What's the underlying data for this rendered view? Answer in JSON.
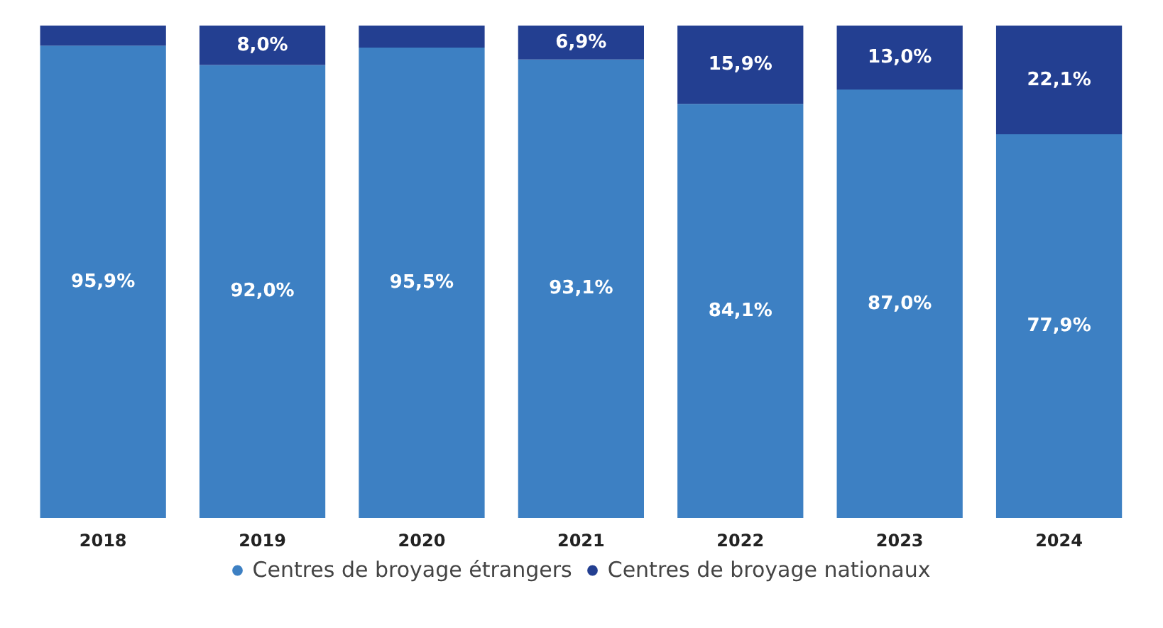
{
  "chart_data": {
    "type": "bar",
    "stacked": true,
    "categories": [
      "2018",
      "2019",
      "2020",
      "2021",
      "2022",
      "2023",
      "2024"
    ],
    "series": [
      {
        "name": "Centres de broyage étrangers",
        "color": "#3d80c3",
        "values": [
          95.9,
          92.0,
          95.5,
          93.1,
          84.1,
          87.0,
          77.9
        ],
        "value_labels": [
          "95,9%",
          "92,0%",
          "95,5%",
          "93,1%",
          "84,1%",
          "87,0%",
          "77,9%"
        ]
      },
      {
        "name": "Centres de broyage nationaux",
        "color": "#233f91",
        "values": [
          4.1,
          8.0,
          4.5,
          6.9,
          15.9,
          13.0,
          22.1
        ],
        "value_labels": [
          null,
          "8,0%",
          null,
          "6,9%",
          "15,9%",
          "13,0%",
          "22,1%"
        ]
      }
    ],
    "legend": "bottom",
    "marker": "circle"
  }
}
